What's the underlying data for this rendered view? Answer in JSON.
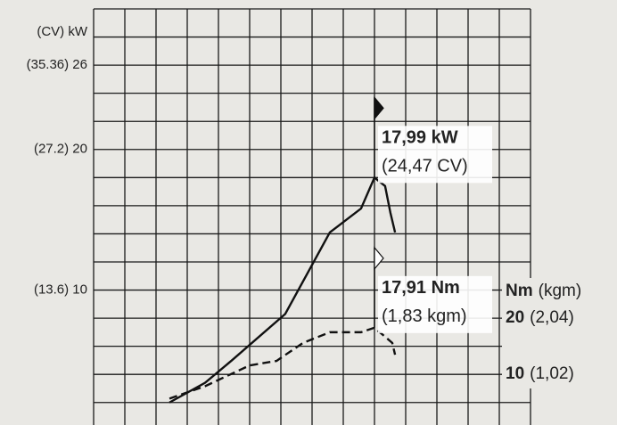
{
  "chart_data": {
    "type": "line",
    "ylabel": "(CV) kW",
    "y2label": "Nm",
    "y2label_unit": "(kgm)",
    "xlim": [
      0,
      14
    ],
    "xgrid": [
      0,
      1,
      2,
      3,
      4,
      5,
      6,
      7,
      8,
      9,
      10,
      11,
      12,
      13,
      14
    ],
    "ylim": [
      0.4,
      30
    ],
    "ygrid": [
      2,
      4,
      6,
      8,
      10,
      12,
      14,
      16,
      18,
      20,
      22,
      24,
      26,
      28,
      30
    ],
    "yticks": [
      {
        "value": 26,
        "label": "(35.36) 26"
      },
      {
        "value": 20,
        "label": "(27.2) 20"
      },
      {
        "value": 10,
        "label": "(13.6) 10"
      }
    ],
    "y2lim": [
      1,
      75
    ],
    "y2ticks": [
      20,
      10
    ],
    "y2tick_alt_labels": [
      "(2,04)",
      "(1,02)"
    ],
    "series": [
      {
        "color": "#111111",
        "style": "solid",
        "x": [
          2.43,
          3.57,
          4.43,
          6.14,
          7.57,
          8.57,
          9.0,
          9.34,
          9.51,
          9.66
        ],
        "values": [
          2.0,
          3.4,
          5.0,
          8.3,
          14.1,
          15.8,
          18.0,
          17.4,
          15.5,
          14.1
        ]
      },
      {
        "color": "#111111",
        "style": "dashed",
        "axis": "y2",
        "x": [
          2.43,
          3.57,
          5.0,
          5.86,
          6.71,
          7.57,
          8.57,
          9.0,
          9.34,
          9.57,
          9.66
        ],
        "values": [
          5.7,
          7.9,
          11.6,
          12.4,
          15.6,
          17.5,
          17.5,
          18.3,
          16.7,
          15.6,
          13.5
        ]
      }
    ],
    "annotations": [
      {
        "series": 0,
        "bold": "17,99 kW",
        "text": "(24,47 CV)",
        "flag": "filled"
      },
      {
        "series": 1,
        "bold": "17,91 Nm",
        "text": "(1,83 kgm)",
        "flag": "open"
      }
    ]
  }
}
